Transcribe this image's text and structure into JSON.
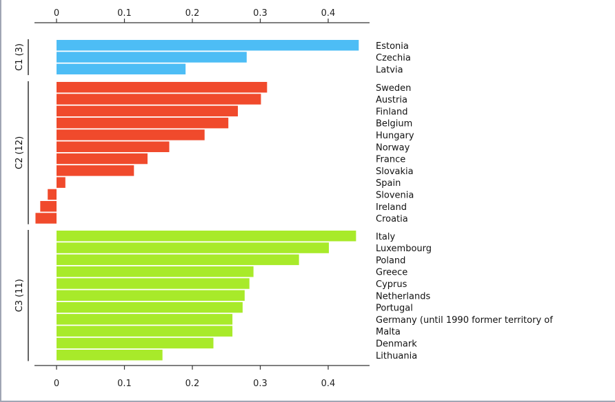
{
  "chart_data": {
    "type": "bar",
    "orientation": "horizontal",
    "xlim": [
      -0.033,
      0.46
    ],
    "x_ticks": [
      "0",
      "0.1",
      "0.2",
      "0.3",
      "0.4"
    ],
    "x_tick_values": [
      0,
      0.1,
      0.2,
      0.3,
      0.4
    ],
    "grid": false,
    "clusters": [
      {
        "label": "C1 (3)",
        "color": "#4dbdf5",
        "categories": [
          "Estonia",
          "Czechia",
          "Latvia"
        ],
        "values": [
          0.445,
          0.28,
          0.19
        ]
      },
      {
        "label": "C2 (12)",
        "color": "#f04a2c",
        "categories": [
          "Sweden",
          "Austria",
          "Finland",
          "Belgium",
          "Hungary",
          "Norway",
          "France",
          "Slovakia",
          "Spain",
          "Slovenia",
          "Ireland",
          "Croatia"
        ],
        "values": [
          0.31,
          0.301,
          0.267,
          0.253,
          0.218,
          0.166,
          0.134,
          0.114,
          0.013,
          -0.013,
          -0.024,
          -0.031
        ]
      },
      {
        "label": "C3 (11)",
        "color": "#a8ea2a",
        "categories": [
          "Italy",
          "Luxembourg",
          "Poland",
          "Greece",
          "Cyprus",
          "Netherlands",
          "Portugal",
          "Germany (until 1990 former territory of",
          "Malta",
          "Denmark",
          "Lithuania"
        ],
        "values": [
          0.441,
          0.401,
          0.357,
          0.29,
          0.284,
          0.277,
          0.274,
          0.259,
          0.259,
          0.231,
          0.156
        ]
      }
    ]
  }
}
